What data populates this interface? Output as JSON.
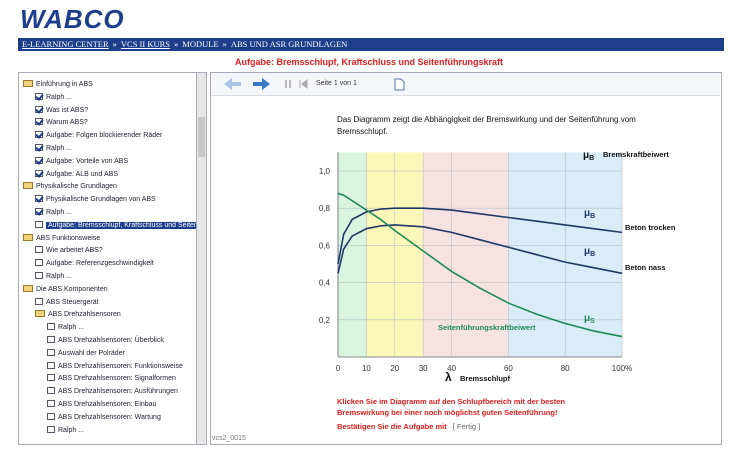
{
  "header": {
    "logo": "WABCO",
    "breadcrumb": [
      "E-LEARNING CENTER",
      "VCS II KURS",
      "MODULE",
      "ABS UND ASR GRUNDLAGEN"
    ],
    "separator": "»"
  },
  "task_title": "Aufgabe: Bremsschlupf, Kraftschluss und Seitenführungskraft",
  "tree": [
    {
      "label": "Einführung in ABS",
      "level": 0,
      "icon": "folder"
    },
    {
      "label": "Ralph ...",
      "level": 1,
      "icon": "check"
    },
    {
      "label": "Was ist ABS?",
      "level": 1,
      "icon": "check"
    },
    {
      "label": "Warum ABS?",
      "level": 1,
      "icon": "check"
    },
    {
      "label": "Aufgabe: Folgen blockierender Räder",
      "level": 1,
      "icon": "check"
    },
    {
      "label": "Ralph ...",
      "level": 1,
      "icon": "check"
    },
    {
      "label": "Aufgabe: Vorteile von ABS",
      "level": 1,
      "icon": "check"
    },
    {
      "label": "Aufgabe: ALB und ABS",
      "level": 1,
      "icon": "check"
    },
    {
      "label": "Physikalische Grundlagen",
      "level": 0,
      "icon": "folder"
    },
    {
      "label": "Physikalische Grundlagen von ABS",
      "level": 1,
      "icon": "check"
    },
    {
      "label": "Ralph ...",
      "level": 1,
      "icon": "check"
    },
    {
      "label": "Aufgabe: Bremsschlupf, Kraftschluss und Seitenführungskraft",
      "level": 1,
      "icon": "box",
      "selected": true
    },
    {
      "label": "ABS Funktionsweise",
      "level": 0,
      "icon": "folder"
    },
    {
      "label": "Wie arbeitet ABS?",
      "level": 1,
      "icon": "box"
    },
    {
      "label": "Aufgabe: Referenzgeschwindigkeit",
      "level": 1,
      "icon": "box"
    },
    {
      "label": "Ralph ...",
      "level": 1,
      "icon": "box"
    },
    {
      "label": "Die ABS Komponenten",
      "level": 0,
      "icon": "folder"
    },
    {
      "label": "ABS Steuergerät",
      "level": 1,
      "icon": "box"
    },
    {
      "label": "ABS Drehzahlsensoren",
      "level": 1,
      "icon": "folder"
    },
    {
      "label": "Ralph ...",
      "level": 2,
      "icon": "box"
    },
    {
      "label": "ABS Drehzahlsensoren: Überblick",
      "level": 2,
      "icon": "box"
    },
    {
      "label": "Auswahl der Polräder",
      "level": 2,
      "icon": "box"
    },
    {
      "label": "ABS Drehzahlsensoren: Funktionsweise",
      "level": 2,
      "icon": "box"
    },
    {
      "label": "ABS Drehzahlsensoren: Signalformen",
      "level": 2,
      "icon": "box"
    },
    {
      "label": "ABS Drehzahlsensoren: Ausführungen",
      "level": 2,
      "icon": "box"
    },
    {
      "label": "ABS Drehzahlsensoren: Einbau",
      "level": 2,
      "icon": "box"
    },
    {
      "label": "ABS Drehzahlsensoren: Wartung",
      "level": 2,
      "icon": "box"
    },
    {
      "label": "Ralph ...",
      "level": 2,
      "icon": "box"
    }
  ],
  "toolbar": {
    "page": "Seite 1 von 1"
  },
  "description": "Das Diagramm zeigt die Abhängigkeit der Bremswirkung und der Seitenführung vom Bremsschlupf.",
  "chart_data": {
    "type": "line",
    "x": [
      0,
      2,
      5,
      10,
      15,
      20,
      30,
      40,
      50,
      60,
      70,
      80,
      90,
      100
    ],
    "xlim": [
      0,
      100
    ],
    "ylim": [
      0,
      1.1
    ],
    "xticks": [
      0,
      10,
      20,
      30,
      40,
      60,
      80,
      {
        "value": 100,
        "label": "100%"
      }
    ],
    "yticks": [
      {
        "value": 0.2,
        "label": "0,2"
      },
      {
        "value": 0.4,
        "label": "0,4"
      },
      {
        "value": 0.6,
        "label": "0,6"
      },
      {
        "value": 0.8,
        "label": "0,8"
      },
      {
        "value": 1.0,
        "label": "1,0"
      }
    ],
    "grid": true,
    "zones": [
      {
        "from": 0,
        "to": 10,
        "color": "#d9f5df"
      },
      {
        "from": 10,
        "to": 30,
        "color": "#fbf7b8"
      },
      {
        "from": 30,
        "to": 60,
        "color": "#f6e3e1"
      },
      {
        "from": 60,
        "to": 100,
        "color": "#d9ecf7"
      }
    ],
    "series": [
      {
        "name": "Beton trocken",
        "color": "#1f3766",
        "values": [
          0.5,
          0.66,
          0.74,
          0.78,
          0.795,
          0.8,
          0.8,
          0.79,
          0.77,
          0.75,
          0.73,
          0.71,
          0.69,
          0.67
        ]
      },
      {
        "name": "Beton nass",
        "color": "#1f3766",
        "values": [
          0.45,
          0.58,
          0.65,
          0.69,
          0.705,
          0.71,
          0.7,
          0.67,
          0.63,
          0.59,
          0.55,
          0.51,
          0.48,
          0.45
        ]
      },
      {
        "name": "Seitenführungskraftbeiwert",
        "color": "#1e8a5a",
        "values": [
          0.88,
          0.87,
          0.84,
          0.79,
          0.74,
          0.68,
          0.57,
          0.46,
          0.37,
          0.29,
          0.23,
          0.18,
          0.14,
          0.11
        ]
      }
    ],
    "y_label": {
      "symbol": "μ",
      "sub": "B",
      "text": "Bremskraftbeiwert"
    },
    "x_label": {
      "symbol": "λ",
      "text": "Bremsschlupf"
    },
    "curve_symbols": [
      {
        "symbol": "μ",
        "sub": "B"
      },
      {
        "symbol": "μ",
        "sub": "B"
      },
      {
        "symbol": "μ",
        "sub": "S"
      }
    ]
  },
  "instruction": [
    "Klicken Sie im Diagramm auf den Schlupfbereich mit der besten",
    "Bremswirkung bei einer noch möglichst guten Seitenführung!"
  ],
  "confirm": {
    "text": "Bestätigen Sie die Aufgabe mit",
    "button": "[ Fertig ]"
  },
  "footer": "vcs2_0015"
}
